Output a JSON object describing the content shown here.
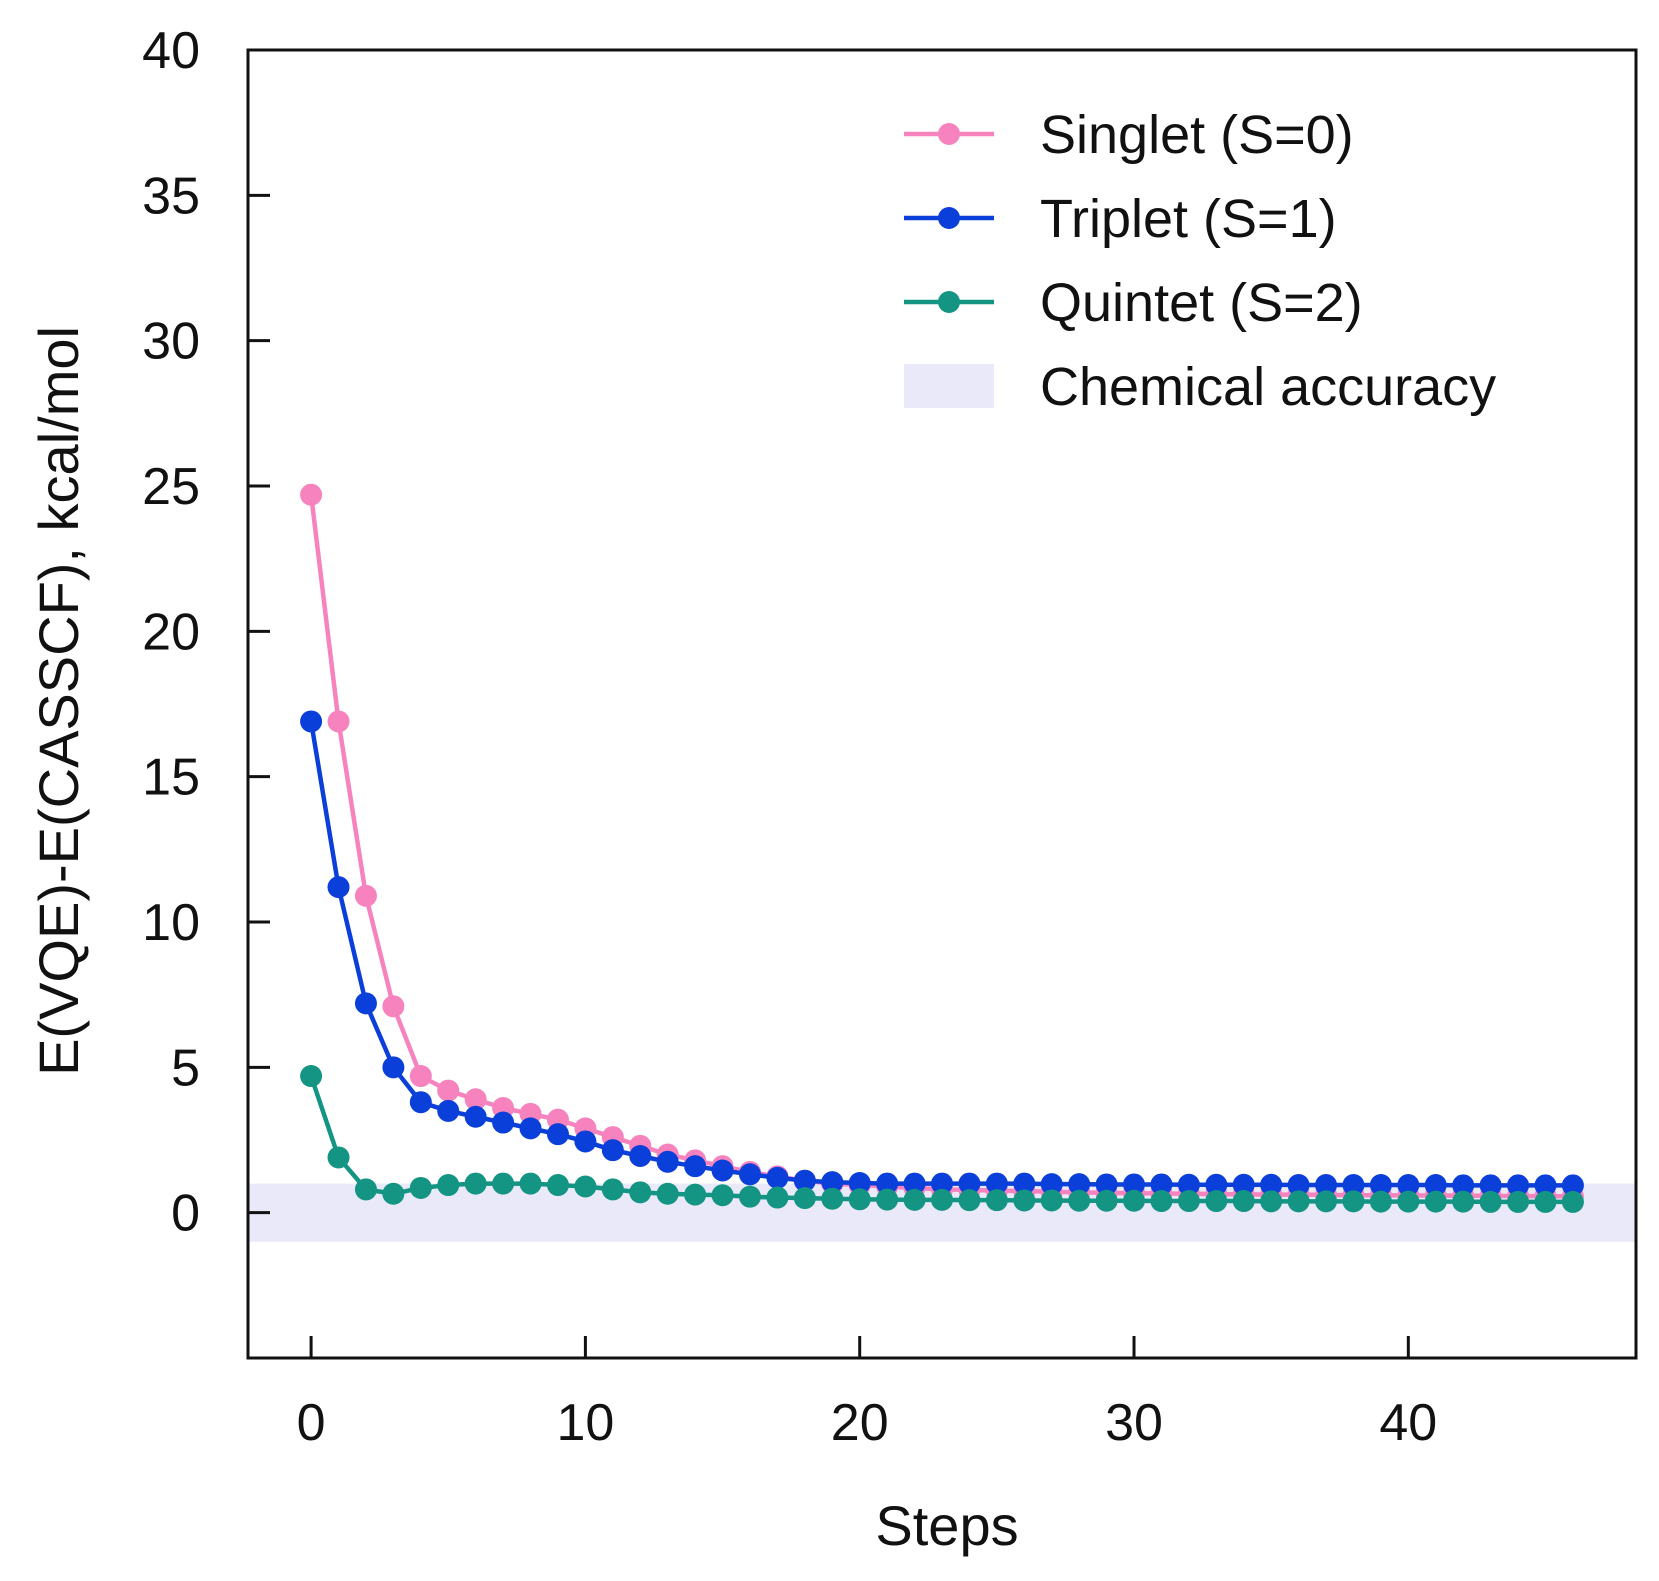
{
  "chart_data": {
    "type": "line",
    "title": "",
    "xlabel": "Steps",
    "ylabel": "E(VQE)-E(CASSCF), kcal/mol",
    "xlim": [
      -2.3,
      48.3
    ],
    "ylim": [
      -5,
      40
    ],
    "xticks": [
      0,
      10,
      20,
      30,
      40
    ],
    "yticks": [
      0,
      5,
      10,
      15,
      20,
      25,
      30,
      35,
      40
    ],
    "grid": false,
    "legend_position": "top-right",
    "band": {
      "name": "Chemical accuracy",
      "y_range": [
        -1,
        1
      ],
      "color": "#e9e9fa"
    },
    "x": [
      0,
      1,
      2,
      3,
      4,
      5,
      6,
      7,
      8,
      9,
      10,
      11,
      12,
      13,
      14,
      15,
      16,
      17,
      18,
      19,
      20,
      21,
      22,
      23,
      24,
      25,
      26,
      27,
      28,
      29,
      30,
      31,
      32,
      33,
      34,
      35,
      36,
      37,
      38,
      39,
      40,
      41,
      42,
      43,
      44,
      45,
      46
    ],
    "series": [
      {
        "name": "Singlet  (S=0)",
        "color": "#f783be",
        "values": [
          24.7,
          16.9,
          10.9,
          7.1,
          4.7,
          4.2,
          3.9,
          3.6,
          3.4,
          3.2,
          2.9,
          2.6,
          2.3,
          2.0,
          1.8,
          1.6,
          1.4,
          1.25,
          1.1,
          1.0,
          0.95,
          0.9,
          0.85,
          0.8,
          0.78,
          0.76,
          0.74,
          0.72,
          0.7,
          0.68,
          0.67,
          0.66,
          0.65,
          0.64,
          0.63,
          0.62,
          0.62,
          0.61,
          0.6,
          0.6,
          0.59,
          0.59,
          0.58,
          0.58,
          0.57,
          0.57,
          0.56
        ]
      },
      {
        "name": "Triplet   (S=1)",
        "color": "#0a3fd9",
        "values": [
          16.9,
          11.2,
          7.2,
          5.0,
          3.8,
          3.5,
          3.3,
          3.1,
          2.9,
          2.7,
          2.45,
          2.15,
          1.95,
          1.75,
          1.6,
          1.45,
          1.32,
          1.2,
          1.1,
          1.05,
          1.02,
          1.0,
          1.0,
          1.0,
          1.0,
          1.0,
          1.0,
          0.98,
          0.98,
          0.97,
          0.97,
          0.97,
          0.96,
          0.96,
          0.96,
          0.96,
          0.95,
          0.95,
          0.95,
          0.95,
          0.95,
          0.95,
          0.94,
          0.94,
          0.94,
          0.94,
          0.94
        ]
      },
      {
        "name": "Quintet (S=2)",
        "color": "#149483",
        "values": [
          4.7,
          1.9,
          0.8,
          0.65,
          0.85,
          0.95,
          1.0,
          1.0,
          1.0,
          0.95,
          0.9,
          0.8,
          0.7,
          0.65,
          0.62,
          0.6,
          0.55,
          0.52,
          0.5,
          0.48,
          0.46,
          0.45,
          0.44,
          0.44,
          0.43,
          0.43,
          0.42,
          0.42,
          0.41,
          0.41,
          0.41,
          0.4,
          0.4,
          0.4,
          0.4,
          0.39,
          0.39,
          0.39,
          0.39,
          0.38,
          0.38,
          0.38,
          0.38,
          0.37,
          0.37,
          0.37,
          0.37
        ]
      }
    ]
  }
}
